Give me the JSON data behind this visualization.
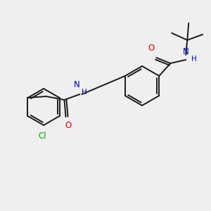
{
  "bg_color": "#efefef",
  "bond_color": "#1a1a1a",
  "atom_colors": {
    "N": "#0000cc",
    "O": "#dd0000",
    "Cl": "#00aa00"
  },
  "figsize": [
    3.0,
    3.0
  ],
  "dpi": 100
}
